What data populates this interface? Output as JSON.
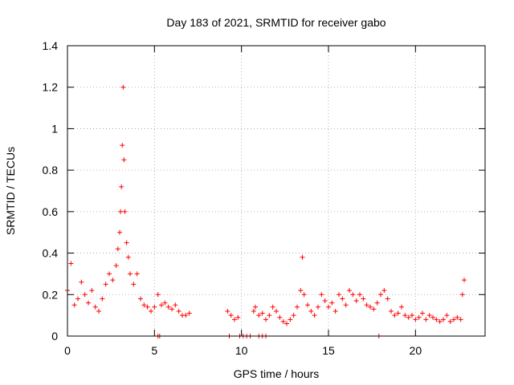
{
  "chart_data": {
    "type": "scatter",
    "title": "Day 183 of 2021, SRMTID for receiver gabo",
    "xlabel": "GPS time / hours",
    "ylabel": "SRMTID / TECUs",
    "xlim": [
      0,
      24
    ],
    "ylim": [
      0,
      1.4
    ],
    "x_ticks": [
      0,
      5,
      10,
      15,
      20
    ],
    "x_tick_labels": [
      "0",
      "5",
      "10",
      "15",
      "20"
    ],
    "y_ticks": [
      0,
      0.2,
      0.4,
      0.6,
      0.8,
      1.0,
      1.2,
      1.4
    ],
    "y_tick_labels": [
      "0",
      "0.2",
      "0.4",
      "0.6",
      "0.8",
      "1",
      "1.2",
      "1.4"
    ],
    "grid": true,
    "marker": "+",
    "color": "#ff0000",
    "series": [
      {
        "name": "SRMTID",
        "x": [
          0.0,
          0.2,
          0.4,
          0.6,
          0.8,
          1.0,
          1.2,
          1.4,
          1.6,
          1.8,
          2.0,
          2.2,
          2.4,
          2.6,
          2.8,
          2.9,
          3.0,
          3.05,
          3.1,
          3.15,
          3.2,
          3.25,
          3.3,
          3.4,
          3.5,
          3.6,
          3.8,
          4.0,
          4.2,
          4.4,
          4.6,
          4.8,
          5.0,
          5.2,
          5.4,
          5.6,
          5.8,
          6.0,
          6.2,
          6.4,
          6.6,
          6.8,
          7.0,
          9.2,
          9.4,
          9.6,
          9.8,
          10.7,
          10.8,
          11.0,
          11.2,
          11.4,
          11.6,
          11.8,
          12.0,
          12.2,
          12.4,
          12.6,
          12.8,
          13.0,
          13.2,
          13.4,
          13.5,
          13.6,
          13.8,
          14.0,
          14.2,
          14.4,
          14.6,
          14.8,
          15.0,
          15.2,
          15.4,
          15.6,
          15.8,
          16.0,
          16.2,
          16.4,
          16.6,
          16.8,
          17.0,
          17.2,
          17.4,
          17.6,
          17.8,
          18.0,
          18.2,
          18.4,
          18.6,
          18.8,
          19.0,
          19.2,
          19.4,
          19.6,
          19.8,
          20.0,
          20.2,
          20.4,
          20.6,
          20.8,
          21.0,
          21.2,
          21.4,
          21.6,
          21.8,
          22.0,
          22.2,
          22.4,
          22.6,
          22.7,
          22.8
        ],
        "y": [
          0.22,
          0.35,
          0.15,
          0.18,
          0.26,
          0.2,
          0.16,
          0.22,
          0.14,
          0.12,
          0.18,
          0.25,
          0.3,
          0.27,
          0.34,
          0.42,
          0.5,
          0.6,
          0.72,
          0.92,
          1.2,
          0.85,
          0.6,
          0.45,
          0.38,
          0.3,
          0.25,
          0.3,
          0.18,
          0.15,
          0.14,
          0.12,
          0.14,
          0.2,
          0.15,
          0.16,
          0.14,
          0.13,
          0.15,
          0.12,
          0.1,
          0.1,
          0.11,
          0.12,
          0.1,
          0.08,
          0.09,
          0.12,
          0.14,
          0.1,
          0.11,
          0.08,
          0.1,
          0.14,
          0.12,
          0.09,
          0.07,
          0.06,
          0.08,
          0.1,
          0.14,
          0.22,
          0.38,
          0.2,
          0.15,
          0.12,
          0.1,
          0.14,
          0.2,
          0.17,
          0.14,
          0.16,
          0.12,
          0.2,
          0.18,
          0.15,
          0.22,
          0.2,
          0.17,
          0.2,
          0.18,
          0.15,
          0.14,
          0.13,
          0.16,
          0.2,
          0.22,
          0.18,
          0.12,
          0.1,
          0.11,
          0.14,
          0.1,
          0.09,
          0.1,
          0.08,
          0.09,
          0.11,
          0.08,
          0.1,
          0.09,
          0.08,
          0.07,
          0.08,
          0.1,
          0.07,
          0.08,
          0.09,
          0.08,
          0.2,
          0.27
        ]
      }
    ],
    "zero_value_markers_x": [
      5.2,
      5.3,
      9.3,
      9.9,
      10.1,
      10.3,
      10.5,
      11.0,
      11.2,
      11.4,
      17.9
    ]
  }
}
